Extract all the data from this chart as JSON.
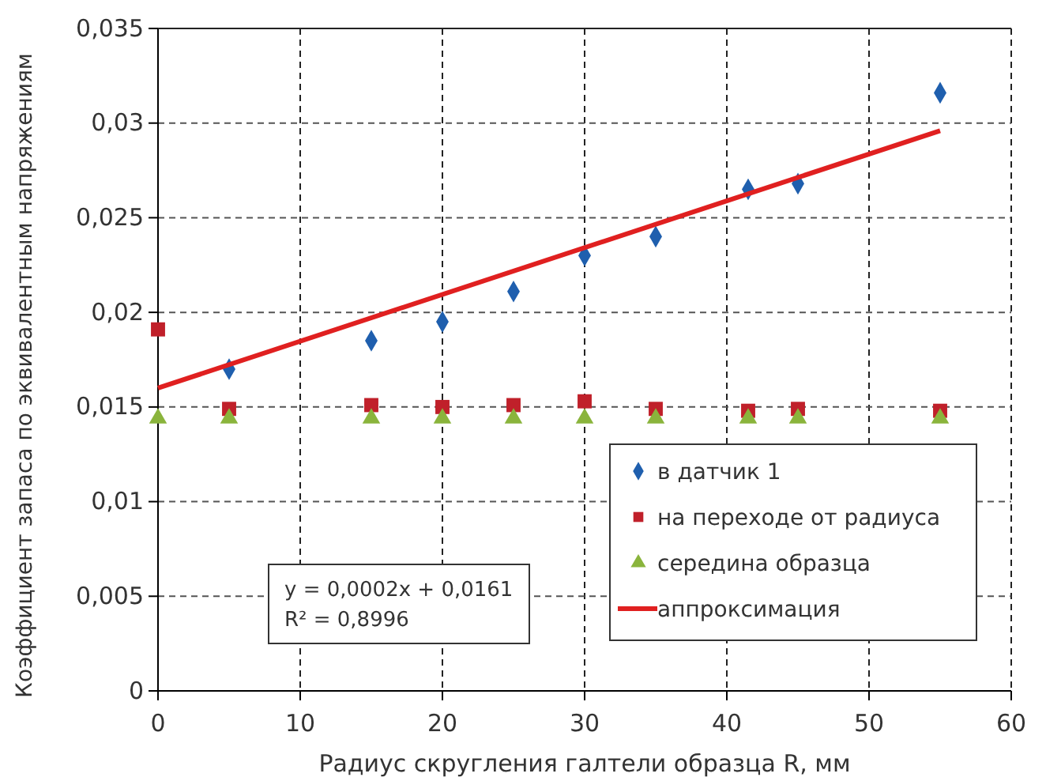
{
  "chart_data": {
    "type": "scatter",
    "xlabel": "Радиус скругления галтели образца R, мм",
    "ylabel": "Коэффициент запаса по эквивалентным напряжениям",
    "xlim": [
      0,
      60
    ],
    "xticks": [
      0,
      10,
      20,
      30,
      40,
      50,
      60
    ],
    "ylim": [
      0,
      0.035
    ],
    "yticks": [
      {
        "value": 0,
        "label": "0"
      },
      {
        "value": 0.005,
        "label": "0,005"
      },
      {
        "value": 0.01,
        "label": "0,01"
      },
      {
        "value": 0.015,
        "label": "0,015"
      },
      {
        "value": 0.02,
        "label": "0,02"
      },
      {
        "value": 0.025,
        "label": "0,025"
      },
      {
        "value": 0.03,
        "label": "0,03"
      },
      {
        "value": 0.035,
        "label": "0,035"
      }
    ],
    "grid": true,
    "legend": "bottom right",
    "annotations": [
      "y = 0,0002x + 0,0161\nR² = 0,8996"
    ],
    "series": [
      {
        "name": "в датчик 1",
        "color": "#1f5fae",
        "marker": "diamond",
        "x": [
          5,
          15,
          20,
          25,
          30,
          35,
          41.5,
          45,
          55
        ],
        "values": [
          0.017,
          0.0185,
          0.0195,
          0.0211,
          0.023,
          0.024,
          0.0265,
          0.0268,
          0.0316
        ]
      },
      {
        "name": "на переходе от радиуса",
        "color": "#c0202a",
        "marker": "square",
        "x": [
          0,
          5,
          15,
          20,
          25,
          30,
          35,
          41.5,
          45,
          55
        ],
        "values": [
          0.0191,
          0.0149,
          0.0151,
          0.015,
          0.0151,
          0.0153,
          0.0149,
          0.0148,
          0.0149,
          0.0148
        ]
      },
      {
        "name": "середина образца",
        "color": "#8ab43c",
        "marker": "triangle",
        "x": [
          0,
          5,
          15,
          20,
          25,
          30,
          35,
          41.5,
          45,
          55
        ],
        "values": [
          0.0144,
          0.0144,
          0.0144,
          0.0144,
          0.0144,
          0.0144,
          0.0144,
          0.0144,
          0.0144,
          0.0144
        ]
      },
      {
        "name": "аппроксимация",
        "color": "#e02020",
        "type": "line",
        "marker": "none",
        "x": [
          0,
          55
        ],
        "values": [
          0.016,
          0.0296
        ]
      }
    ]
  }
}
